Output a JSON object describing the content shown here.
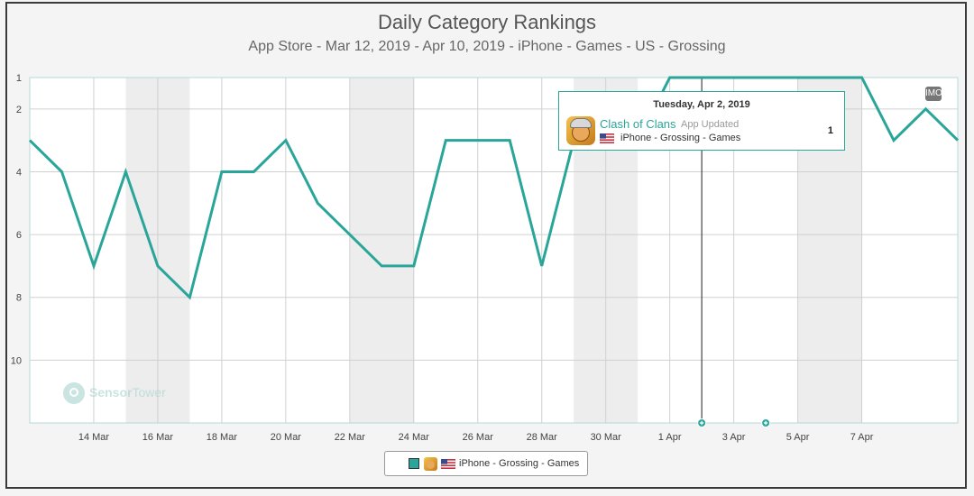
{
  "header": {
    "title": "Daily Category Rankings",
    "subtitle": "App Store - Mar 12, 2019 - Apr 10, 2019 - iPhone - Games - US - Grossing"
  },
  "chart_data": {
    "type": "line",
    "x_dates": [
      "2019-03-12",
      "2019-03-13",
      "2019-03-14",
      "2019-03-15",
      "2019-03-16",
      "2019-03-17",
      "2019-03-18",
      "2019-03-19",
      "2019-03-20",
      "2019-03-21",
      "2019-03-22",
      "2019-03-23",
      "2019-03-24",
      "2019-03-25",
      "2019-03-26",
      "2019-03-27",
      "2019-03-28",
      "2019-03-29",
      "2019-03-30",
      "2019-03-31",
      "2019-04-01",
      "2019-04-02",
      "2019-04-03",
      "2019-04-04",
      "2019-04-05",
      "2019-04-06",
      "2019-04-07",
      "2019-04-08",
      "2019-04-09",
      "2019-04-10"
    ],
    "series": [
      {
        "name": "iPhone - Grossing - Games",
        "color": "#2aa59a",
        "values": [
          3,
          4,
          7,
          4,
          7,
          8,
          4,
          4,
          3,
          5,
          6,
          7,
          7,
          3,
          3,
          3,
          7,
          3,
          3,
          3,
          1,
          1,
          1,
          1,
          1,
          1,
          1,
          3,
          2,
          3
        ]
      }
    ],
    "x_tick_labels": [
      "14 Mar",
      "16 Mar",
      "18 Mar",
      "20 Mar",
      "22 Mar",
      "24 Mar",
      "26 Mar",
      "28 Mar",
      "30 Mar",
      "1 Apr",
      "3 Apr",
      "5 Apr",
      "7 Apr"
    ],
    "x_tick_dates": [
      "2019-03-14",
      "2019-03-16",
      "2019-03-18",
      "2019-03-20",
      "2019-03-22",
      "2019-03-24",
      "2019-03-26",
      "2019-03-28",
      "2019-03-30",
      "2019-04-01",
      "2019-04-03",
      "2019-04-05",
      "2019-04-07"
    ],
    "y_tick_labels": [
      "1",
      "2",
      "4",
      "6",
      "8",
      "10"
    ],
    "y_tick_values": [
      1,
      2,
      4,
      6,
      8,
      10
    ],
    "ylim": [
      1,
      12
    ],
    "y_inverted": true,
    "weekend_bands": [
      [
        "2019-03-15",
        "2019-03-17"
      ],
      [
        "2019-03-22",
        "2019-03-24"
      ],
      [
        "2019-03-29",
        "2019-03-31"
      ],
      [
        "2019-04-05",
        "2019-04-07"
      ]
    ],
    "event_markers": [
      "2019-04-02",
      "2019-04-04"
    ],
    "highlight_date": "2019-04-02",
    "grid": true,
    "legend_position": "bottom-center"
  },
  "tooltip": {
    "date": "Tuesday, Apr 2, 2019",
    "app_name": "Clash of Clans",
    "note": "App Updated",
    "category": "iPhone - Grossing - Games",
    "value": "1"
  },
  "legend": {
    "label": "iPhone - Grossing - Games"
  },
  "watermark": {
    "brand_a": "Sensor",
    "brand_b": "Tower"
  },
  "corner_badge": "IMO"
}
